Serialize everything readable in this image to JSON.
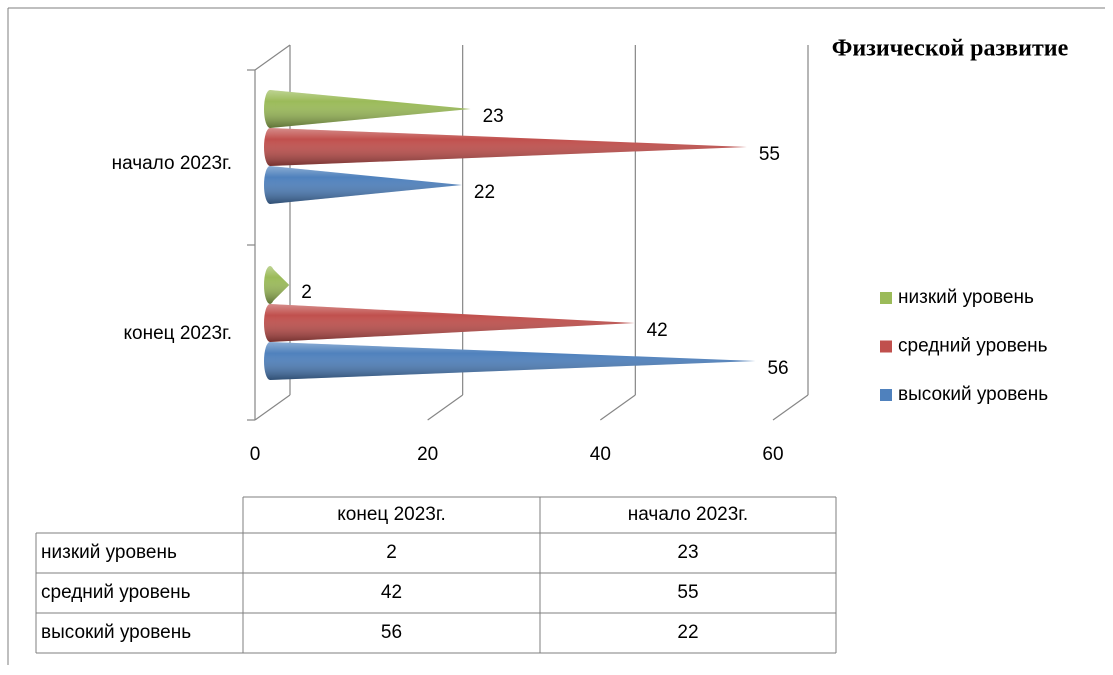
{
  "chart_data": {
    "type": "bar",
    "orientation": "horizontal",
    "title": "Физической развитие",
    "categories": [
      "конец 2023г.",
      "начало 2023г."
    ],
    "series": [
      {
        "name": "низкий уровень",
        "color": "#9bbb59",
        "values": [
          2,
          23
        ]
      },
      {
        "name": "средний уровень",
        "color": "#c0504d",
        "values": [
          42,
          55
        ]
      },
      {
        "name": "высокий уровень",
        "color": "#4f81bd",
        "values": [
          56,
          22
        ]
      }
    ],
    "xlim": [
      0,
      60
    ],
    "xticks": [
      0,
      20,
      40,
      60
    ],
    "grid": true,
    "legend": "right",
    "data_table": true
  }
}
